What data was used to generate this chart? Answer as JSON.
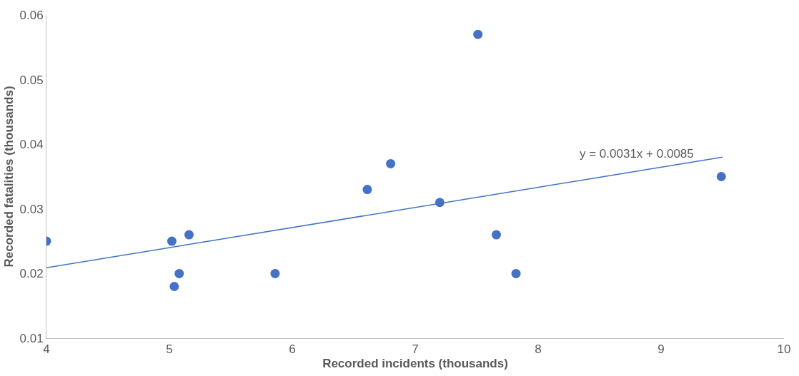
{
  "chart_data": {
    "type": "scatter",
    "xlabel": "Recorded incidents (thousands)",
    "ylabel": "Recorded fatalities (thousands)",
    "xlim": [
      4,
      10
    ],
    "xticks": [
      4,
      5,
      6,
      7,
      8,
      9,
      10
    ],
    "ylim": [
      0.01,
      0.06
    ],
    "yticks": [
      0.01,
      0.02,
      0.03,
      0.04,
      0.05,
      0.06
    ],
    "series": [
      {
        "color": "#4472c4",
        "marker": "circle",
        "x": [
          4.0,
          5.02,
          5.04,
          5.08,
          5.16,
          5.86,
          6.61,
          6.8,
          7.2,
          7.51,
          7.66,
          7.82,
          9.49
        ],
        "values": [
          0.025,
          0.025,
          0.018,
          0.02,
          0.026,
          0.02,
          0.033,
          0.037,
          0.031,
          0.057,
          0.026,
          0.02,
          0.035
        ]
      },
      {
        "type": "line",
        "color": "#4472c4",
        "line_style": "solid",
        "x": [
          4,
          9.5
        ],
        "values": [
          0.0209,
          0.038
        ]
      }
    ],
    "annotations": [
      "y = 0.0031x + 0.0085"
    ]
  }
}
